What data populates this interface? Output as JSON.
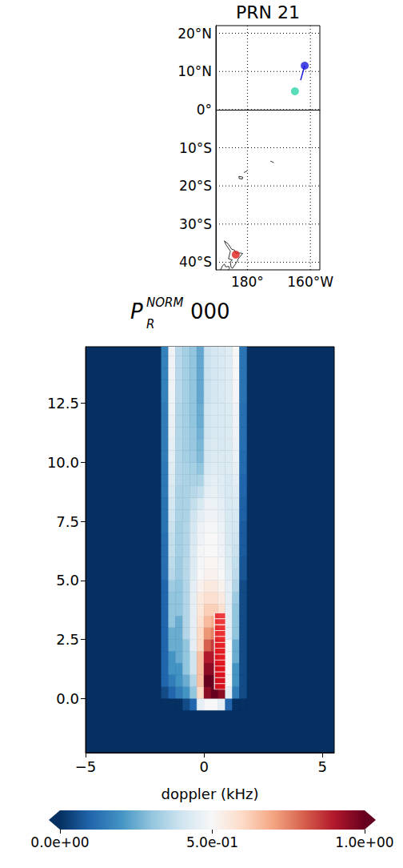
{
  "chart_data": [
    {
      "type": "map",
      "title": "PRN 21",
      "xlim": [
        170,
        203
      ],
      "ylim": [
        -42,
        22
      ],
      "xticks": [
        {
          "value": 180,
          "label": "180°"
        },
        {
          "value": 200,
          "label": "160°W"
        }
      ],
      "yticks": [
        {
          "value": -40,
          "label": "40°S"
        },
        {
          "value": -30,
          "label": "30°S"
        },
        {
          "value": -20,
          "label": "20°S"
        },
        {
          "value": -10,
          "label": "10°S"
        },
        {
          "value": 0,
          "label": "0°"
        },
        {
          "value": 10,
          "label": "10°N"
        },
        {
          "value": 20,
          "label": "20°N"
        }
      ],
      "grid": true,
      "line_style": "dotted",
      "points": [
        {
          "lon": 198.2,
          "lat": 11.5,
          "color": "#1a1adc"
        },
        {
          "lon": 195.1,
          "lat": 4.8,
          "color": "#2ed3a8"
        },
        {
          "lon": 176.3,
          "lat": -38.0,
          "color": "#e0201a"
        }
      ],
      "track": {
        "lon": [
          198.2,
          196.9
        ],
        "lat": [
          11.5,
          7.7
        ],
        "color": "#1a1adc"
      },
      "coastlines": [
        {
          "lon": [
            172.7,
            173.9,
            175.0,
            175.9,
            176.3,
            178.0,
            178.5,
            177.0,
            176.9,
            175.3,
            174.8,
            174.6,
            175.2,
            174.0,
            174.6,
            173.2,
            172.7
          ],
          "lat": [
            -34.4,
            -35.2,
            -36.6,
            -36.8,
            -37.6,
            -37.6,
            -37.7,
            -39.2,
            -39.6,
            -41.6,
            -41.3,
            -39.9,
            -39.4,
            -39.1,
            -37.1,
            -35.4,
            -34.4
          ]
        },
        {
          "lon": [
            171.5,
            172.1,
            172.7,
            173.1,
            174.1,
            174.3,
            173.6
          ],
          "lat": [
            -42.0,
            -40.9,
            -40.5,
            -41.2,
            -41.1,
            -41.7,
            -42.3
          ]
        },
        {
          "lon": [
            177.3,
            178.5,
            178.4,
            177.4,
            177.3
          ],
          "lat": [
            -17.5,
            -17.7,
            -18.2,
            -18.1,
            -17.5
          ]
        },
        {
          "lon": [
            178.9,
            179.9
          ],
          "lat": [
            -16.5,
            -16.1
          ]
        },
        {
          "lon": [
            187.3,
            188.4
          ],
          "lat": [
            -13.5,
            -13.9
          ]
        }
      ]
    },
    {
      "type": "heatmap",
      "title": {
        "symbol": "P",
        "sub": "R",
        "sup": "NORM",
        "text": "000"
      },
      "xlabel": "doppler (kHz)",
      "xlim": [
        -5.0,
        5.5
      ],
      "xticks": [
        {
          "value": -5,
          "label": "−5"
        },
        0,
        5
      ],
      "ylim": [
        -2.3,
        14.9
      ],
      "yticks": [
        {
          "value": 0,
          "label": "0.0"
        },
        2.5,
        {
          "value": 5,
          "label": "5.0"
        },
        7.5,
        {
          "value": 10,
          "label": "10.0"
        },
        12.5
      ],
      "x_edges": [
        -1.8,
        -1.5,
        -1.2,
        -0.9,
        -0.6,
        -0.3,
        0,
        0.3,
        0.6,
        0.9,
        1.2,
        1.5,
        1.8
      ],
      "y_edges": [
        -0.5,
        0,
        0.5,
        1,
        1.5,
        2,
        2.5,
        3,
        3.5,
        4,
        4.5,
        5,
        5.5,
        6,
        6.5,
        7,
        7.5,
        8,
        8.5,
        9,
        9.5,
        10,
        10.5,
        11,
        11.5,
        12,
        12.5,
        13,
        13.5,
        14,
        14.5,
        15
      ],
      "cells": [
        [
          0,
          0,
          0,
          0.05,
          0.1,
          0.45,
          0.5,
          0.5,
          0.45,
          0.1,
          0,
          0
        ],
        [
          0.05,
          0.1,
          0.15,
          0.2,
          0.3,
          0.6,
          0.95,
          1.0,
          0.95,
          0.45,
          0.15,
          0.05
        ],
        [
          0.1,
          0.15,
          0.2,
          0.25,
          0.35,
          0.65,
          1.0,
          1.0,
          0.95,
          0.5,
          0.2,
          0.05
        ],
        [
          0.1,
          0.2,
          0.2,
          0.3,
          0.4,
          0.65,
          0.95,
          0.95,
          0.9,
          0.5,
          0.2,
          0.05
        ],
        [
          0.1,
          0.2,
          0.25,
          0.3,
          0.4,
          0.65,
          0.9,
          0.9,
          0.85,
          0.5,
          0.25,
          0.05
        ],
        [
          0.1,
          0.25,
          0.25,
          0.3,
          0.45,
          0.6,
          0.8,
          0.85,
          0.8,
          0.5,
          0.25,
          0.05
        ],
        [
          0.1,
          0.25,
          0.25,
          0.35,
          0.45,
          0.6,
          0.72,
          0.75,
          0.7,
          0.45,
          0.3,
          0.05
        ],
        [
          0.1,
          0.3,
          0.25,
          0.35,
          0.45,
          0.58,
          0.66,
          0.68,
          0.62,
          0.45,
          0.3,
          0.05
        ],
        [
          0.1,
          0.3,
          0.3,
          0.35,
          0.45,
          0.56,
          0.62,
          0.62,
          0.58,
          0.45,
          0.3,
          0.05
        ],
        [
          0.1,
          0.3,
          0.3,
          0.35,
          0.45,
          0.55,
          0.58,
          0.58,
          0.55,
          0.45,
          0.32,
          0.05
        ],
        [
          0.1,
          0.32,
          0.3,
          0.35,
          0.45,
          0.52,
          0.55,
          0.55,
          0.52,
          0.45,
          0.35,
          0.05
        ],
        [
          0.12,
          0.36,
          0.32,
          0.36,
          0.44,
          0.5,
          0.52,
          0.52,
          0.5,
          0.44,
          0.37,
          0.07
        ],
        [
          0.12,
          0.37,
          0.32,
          0.36,
          0.43,
          0.49,
          0.51,
          0.51,
          0.49,
          0.43,
          0.38,
          0.07
        ],
        [
          0.12,
          0.38,
          0.33,
          0.35,
          0.43,
          0.49,
          0.5,
          0.5,
          0.48,
          0.43,
          0.39,
          0.08
        ],
        [
          0.12,
          0.38,
          0.33,
          0.35,
          0.42,
          0.48,
          0.5,
          0.5,
          0.48,
          0.42,
          0.4,
          0.08
        ],
        [
          0.13,
          0.39,
          0.33,
          0.35,
          0.41,
          0.47,
          0.49,
          0.49,
          0.47,
          0.42,
          0.41,
          0.08
        ],
        [
          0.13,
          0.4,
          0.34,
          0.34,
          0.4,
          0.45,
          0.48,
          0.48,
          0.46,
          0.42,
          0.42,
          0.09
        ],
        [
          0.13,
          0.41,
          0.34,
          0.34,
          0.38,
          0.42,
          0.47,
          0.47,
          0.45,
          0.42,
          0.43,
          0.09
        ],
        [
          0.14,
          0.42,
          0.34,
          0.34,
          0.36,
          0.38,
          0.45,
          0.46,
          0.44,
          0.42,
          0.44,
          0.1
        ],
        [
          0.14,
          0.43,
          0.35,
          0.34,
          0.34,
          0.34,
          0.44,
          0.45,
          0.44,
          0.42,
          0.45,
          0.1
        ],
        [
          0.14,
          0.44,
          0.35,
          0.34,
          0.33,
          0.3,
          0.42,
          0.44,
          0.43,
          0.43,
          0.46,
          0.11
        ],
        [
          0.15,
          0.45,
          0.35,
          0.33,
          0.32,
          0.28,
          0.41,
          0.43,
          0.43,
          0.43,
          0.47,
          0.11
        ],
        [
          0.15,
          0.45,
          0.35,
          0.33,
          0.31,
          0.27,
          0.41,
          0.43,
          0.42,
          0.43,
          0.47,
          0.12
        ],
        [
          0.15,
          0.46,
          0.35,
          0.33,
          0.31,
          0.26,
          0.4,
          0.42,
          0.42,
          0.43,
          0.48,
          0.12
        ],
        [
          0.15,
          0.46,
          0.35,
          0.33,
          0.3,
          0.25,
          0.4,
          0.42,
          0.42,
          0.43,
          0.48,
          0.12
        ],
        [
          0.15,
          0.47,
          0.35,
          0.33,
          0.3,
          0.25,
          0.4,
          0.42,
          0.42,
          0.43,
          0.48,
          0.12
        ],
        [
          0.16,
          0.47,
          0.36,
          0.33,
          0.3,
          0.24,
          0.39,
          0.41,
          0.42,
          0.44,
          0.49,
          0.13
        ],
        [
          0.16,
          0.48,
          0.36,
          0.33,
          0.3,
          0.24,
          0.39,
          0.41,
          0.42,
          0.44,
          0.49,
          0.13
        ],
        [
          0.16,
          0.48,
          0.36,
          0.33,
          0.3,
          0.24,
          0.39,
          0.41,
          0.42,
          0.44,
          0.5,
          0.13
        ],
        [
          0.16,
          0.48,
          0.36,
          0.33,
          0.3,
          0.24,
          0.39,
          0.41,
          0.42,
          0.44,
          0.5,
          0.13
        ],
        [
          0.16,
          0.48,
          0.36,
          0.33,
          0.3,
          0.24,
          0.39,
          0.41,
          0.42,
          0.44,
          0.5,
          0.13
        ]
      ],
      "markers": {
        "x": [
          0.68,
          0.68,
          0.68,
          0.68,
          0.68,
          0.68,
          0.68,
          0.68,
          0.68,
          0.68,
          0.68,
          0.68,
          0.68
        ],
        "y": [
          0.5,
          0.75,
          1.0,
          1.25,
          1.5,
          1.75,
          2.0,
          2.25,
          2.5,
          2.75,
          3.0,
          3.25,
          3.5
        ],
        "color": "#e8141d",
        "marker": "square"
      },
      "colorbar": {
        "range": [
          0,
          1
        ],
        "ticks": [
          {
            "value": 0,
            "label": "0.0e+00"
          },
          {
            "value": 0.5,
            "label": "5.0e-01"
          },
          {
            "value": 1,
            "label": "1.0e+00"
          }
        ],
        "colors": [
          "#053061",
          "#2166ac",
          "#4393c3",
          "#92c5de",
          "#d1e5f0",
          "#f7f7f7",
          "#fddbc7",
          "#f4a582",
          "#d6604d",
          "#b2182b",
          "#67001f"
        ]
      }
    }
  ]
}
